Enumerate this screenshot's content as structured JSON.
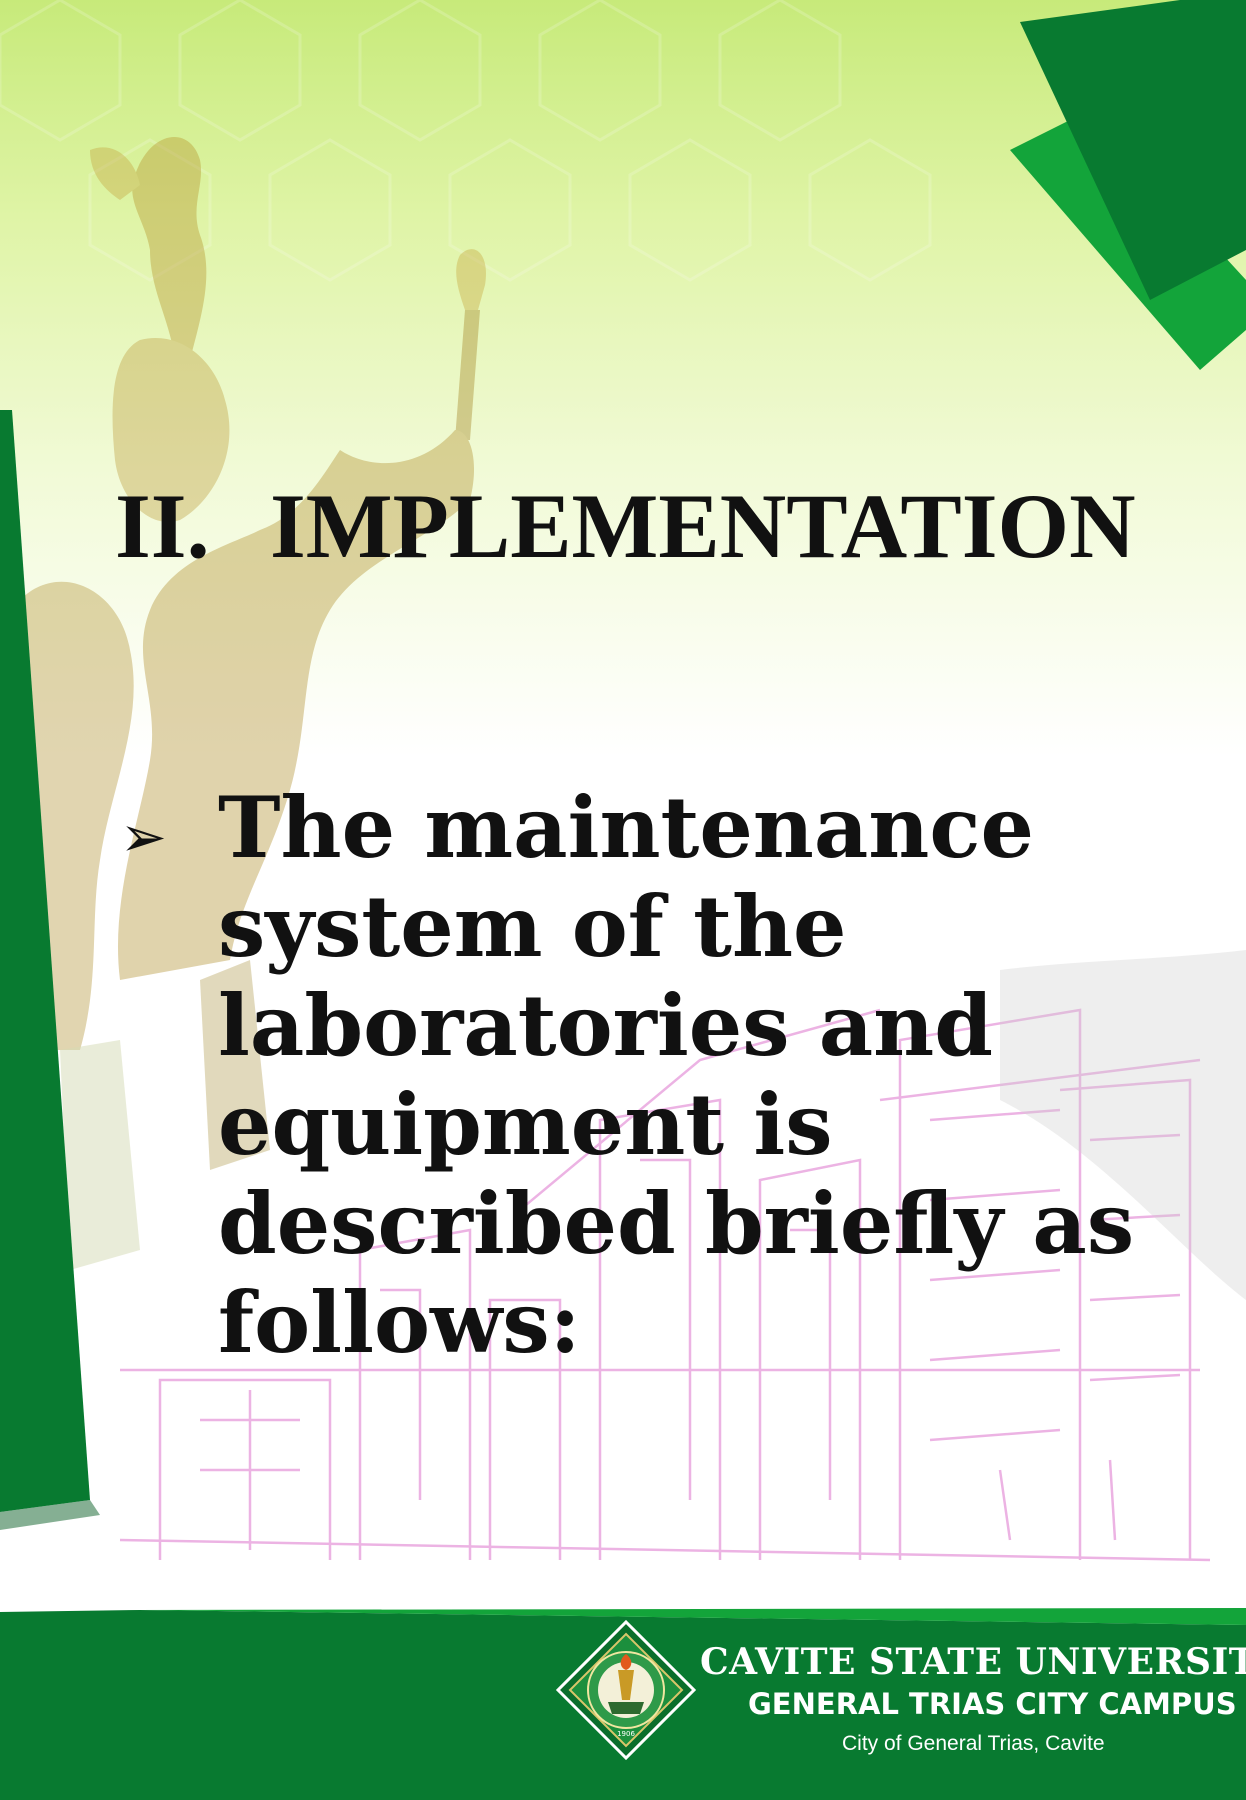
{
  "slide": {
    "heading_number": "II.",
    "heading_text": "IMPLEMENTATION",
    "bullet_marker": "➢",
    "bullet_text": "The maintenance system of the laboratories and equipment is described briefly as follows:"
  },
  "footer": {
    "university": "CAVITE STATE UNIVERSITY",
    "campus": "GENERAL TRIAS CITY CAMPUS",
    "city": "City of General Trias, Cavite",
    "logo_year": "1906"
  },
  "colors": {
    "dark_green": "#087a30",
    "bright_green": "#13a43a",
    "light_green": "#c7ea7a",
    "text": "#111111",
    "building_outline": "#e9a6df"
  }
}
